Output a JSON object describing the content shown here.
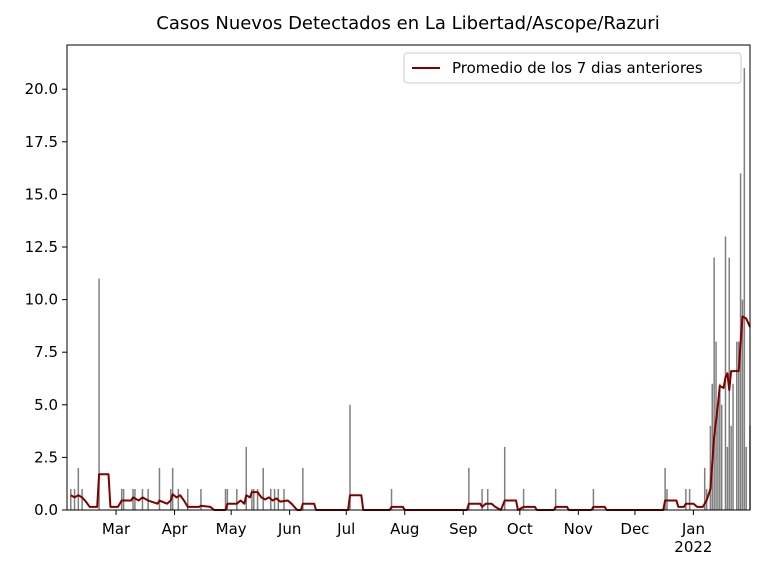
{
  "chart_data": {
    "type": "bar",
    "title": "Casos Nuevos Detectados en La Libertad/Ascope/Razuri",
    "xlim": [
      2,
      364
    ],
    "ylim": [
      0,
      22.1
    ],
    "xticks": [
      {
        "value": 28,
        "label": "Mar"
      },
      {
        "value": 59,
        "label": "Apr"
      },
      {
        "value": 89,
        "label": "May"
      },
      {
        "value": 120,
        "label": "Jun"
      },
      {
        "value": 150,
        "label": "Jul"
      },
      {
        "value": 181,
        "label": "Aug"
      },
      {
        "value": 212,
        "label": "Sep"
      },
      {
        "value": 242,
        "label": "Oct"
      },
      {
        "value": 273,
        "label": "Nov"
      },
      {
        "value": 303,
        "label": "Dec"
      },
      {
        "value": 334,
        "label": "Jan\n2022"
      }
    ],
    "yticks": [
      {
        "value": 0,
        "label": "0.0"
      },
      2.5,
      {
        "value": 5,
        "label": "5.0"
      },
      7.5,
      {
        "value": 10,
        "label": "10.0"
      },
      12.5,
      {
        "value": 15,
        "label": "15.0"
      },
      17.5,
      {
        "value": 20,
        "label": "20.0"
      }
    ],
    "legend": "upper right",
    "series": [
      {
        "type": "bar",
        "color": "#808080",
        "x": [
          4,
          6,
          8,
          10,
          19,
          31,
          32,
          37,
          38,
          42,
          45,
          51,
          57,
          58,
          61,
          66,
          73,
          86,
          87,
          92,
          97,
          100,
          101,
          103,
          106,
          110,
          112,
          114,
          117,
          127,
          152,
          174,
          215,
          222,
          225,
          234,
          244,
          261,
          281,
          319,
          320,
          330,
          332,
          340,
          341,
          343,
          344,
          345,
          346,
          347,
          348,
          349,
          351,
          352,
          353,
          354,
          355,
          357,
          358,
          359,
          360,
          361,
          362,
          364
        ],
        "values": [
          1,
          1,
          2,
          1,
          11,
          1,
          1,
          1,
          1,
          1,
          1,
          2,
          1,
          2,
          1,
          1,
          1,
          1,
          1,
          1,
          3,
          1,
          1,
          1,
          2,
          1,
          1,
          1,
          1,
          2,
          5,
          1,
          2,
          1,
          1,
          3,
          1,
          1,
          1,
          2,
          1,
          1,
          1,
          2,
          1,
          4,
          6,
          12,
          8,
          5,
          6,
          5,
          13,
          3,
          12,
          4,
          6,
          8,
          8,
          16,
          10,
          21,
          3,
          4
        ]
      },
      {
        "type": "line",
        "name": "Promedio de los 7 dias anteriores",
        "color": "#800000",
        "x": [
          4,
          6,
          8,
          10,
          12,
          14,
          18,
          19,
          24,
          25,
          29,
          31,
          36,
          37,
          40,
          42,
          45,
          50,
          51,
          55,
          57,
          58,
          60,
          62,
          64,
          66,
          72,
          73,
          78,
          80,
          86,
          87,
          92,
          94,
          96,
          97,
          99,
          100,
          103,
          105,
          107,
          109,
          111,
          113,
          115,
          119,
          121,
          124,
          126,
          127,
          133,
          134,
          151,
          152,
          158,
          159,
          173,
          174,
          180,
          181,
          214,
          215,
          221,
          222,
          224,
          227,
          229,
          232,
          234,
          240,
          241,
          244,
          250,
          251,
          260,
          261,
          267,
          268,
          280,
          281,
          287,
          288,
          318,
          319,
          325,
          326,
          329,
          330,
          334,
          336,
          339,
          341,
          343,
          345,
          347,
          348,
          350,
          351,
          352,
          353,
          354,
          358,
          360,
          362,
          364
        ],
        "values": [
          0.7,
          0.6,
          0.7,
          0.6,
          0.4,
          0.15,
          0.15,
          1.7,
          1.7,
          0.15,
          0.15,
          0.45,
          0.45,
          0.6,
          0.45,
          0.6,
          0.45,
          0.3,
          0.45,
          0.3,
          0.45,
          0.75,
          0.6,
          0.7,
          0.45,
          0.15,
          0.15,
          0.2,
          0.15,
          0,
          0,
          0.3,
          0.3,
          0.45,
          0.3,
          0.7,
          0.6,
          0.85,
          0.85,
          0.6,
          0.5,
          0.6,
          0.45,
          0.55,
          0.4,
          0.45,
          0.3,
          0,
          0,
          0.3,
          0.3,
          0,
          0,
          0.7,
          0.7,
          0,
          0,
          0.15,
          0.15,
          0,
          0,
          0.3,
          0.3,
          0.15,
          0.3,
          0.3,
          0.15,
          0,
          0.45,
          0.45,
          0,
          0.15,
          0.15,
          0,
          0,
          0.15,
          0.15,
          0,
          0,
          0.15,
          0.15,
          0,
          0,
          0.45,
          0.45,
          0.15,
          0.15,
          0.3,
          0.3,
          0.15,
          0.15,
          0.45,
          1.0,
          3.5,
          5,
          5.9,
          5.8,
          6.3,
          6.5,
          5.7,
          6.6,
          6.6,
          9.2,
          9.1,
          8.7
        ]
      }
    ]
  }
}
